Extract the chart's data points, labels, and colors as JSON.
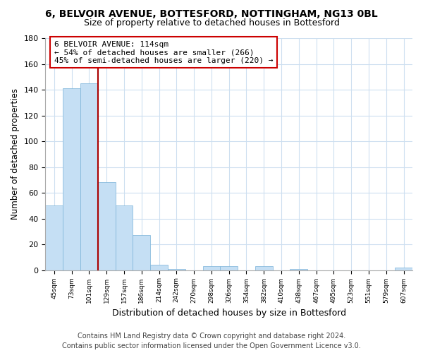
{
  "title": "6, BELVOIR AVENUE, BOTTESFORD, NOTTINGHAM, NG13 0BL",
  "subtitle": "Size of property relative to detached houses in Bottesford",
  "xlabel": "Distribution of detached houses by size in Bottesford",
  "ylabel": "Number of detached properties",
  "bar_labels": [
    "45sqm",
    "73sqm",
    "101sqm",
    "129sqm",
    "157sqm",
    "186sqm",
    "214sqm",
    "242sqm",
    "270sqm",
    "298sqm",
    "326sqm",
    "354sqm",
    "382sqm",
    "410sqm",
    "438sqm",
    "467sqm",
    "495sqm",
    "523sqm",
    "551sqm",
    "579sqm",
    "607sqm"
  ],
  "bar_values": [
    50,
    141,
    145,
    68,
    50,
    27,
    4,
    1,
    0,
    3,
    3,
    0,
    3,
    0,
    1,
    0,
    0,
    0,
    0,
    0,
    2
  ],
  "bar_color": "#c5dff4",
  "bar_edge_color": "#7ab3d8",
  "property_line_x": 2.5,
  "annotation_box_text": "6 BELVOIR AVENUE: 114sqm\n← 54% of detached houses are smaller (266)\n45% of semi-detached houses are larger (220) →",
  "ylim": [
    0,
    180
  ],
  "footer_line1": "Contains HM Land Registry data © Crown copyright and database right 2024.",
  "footer_line2": "Contains public sector information licensed under the Open Government Licence v3.0.",
  "background_color": "#ffffff",
  "grid_color": "#cddff0",
  "red_line_color": "#aa0000",
  "title_fontsize": 10,
  "subtitle_fontsize": 9,
  "xlabel_fontsize": 9,
  "ylabel_fontsize": 8.5,
  "footer_fontsize": 7,
  "annotation_fontsize": 8
}
